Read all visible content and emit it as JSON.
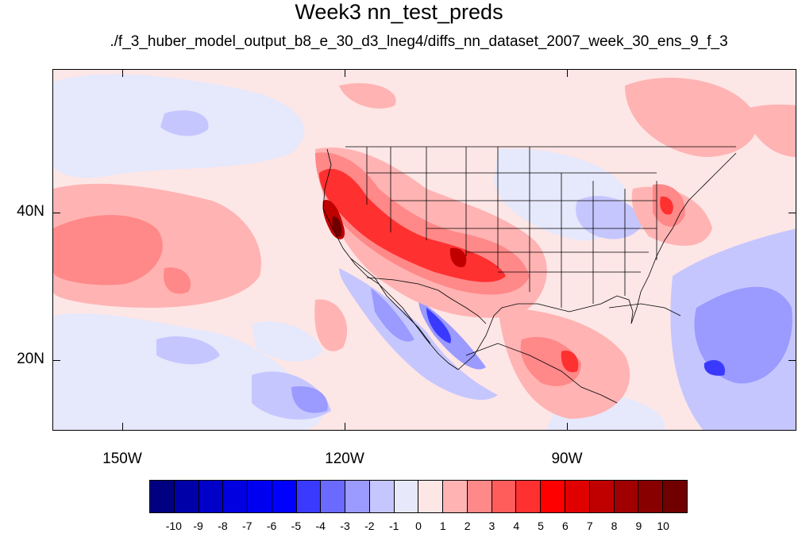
{
  "title": "Week3 nn_test_preds",
  "subtitle": "./f_3_huber_model_output_b8_e_30_d3_lneg4/diffs_nn_dataset_2007_week_30_ens_9_f_3",
  "axes": {
    "lon_labels": [
      "150W",
      "120W",
      "90W"
    ],
    "lat_labels": [
      "40N",
      "20N"
    ]
  },
  "colorbar": {
    "labels": [
      "-10",
      "-9",
      "-8",
      "-7",
      "-6",
      "-5",
      "-4",
      "-3",
      "-2",
      "-1",
      "0",
      "1",
      "2",
      "3",
      "4",
      "5",
      "6",
      "7",
      "8",
      "9",
      "10"
    ],
    "colors": [
      "#000080",
      "#0000a8",
      "#0000c8",
      "#0000e0",
      "#0000f0",
      "#0000ff",
      "#3a3aff",
      "#6a6aff",
      "#9a9aff",
      "#c6c6ff",
      "#e8e8fb",
      "#fde6e6",
      "#ffb3b3",
      "#ff8888",
      "#ff5c5c",
      "#ff3030",
      "#ff0000",
      "#e00000",
      "#c00000",
      "#a00000",
      "#880000",
      "#700000"
    ]
  },
  "palette": {
    "ocean_base": "#fde6e6",
    "light_blue": "#e6e8fb",
    "blue_1": "#c6c6ff",
    "blue_2": "#9a9aff",
    "blue_3": "#6a6aff",
    "blue_4": "#3a3aff",
    "red_1": "#ffb3b3",
    "red_2": "#ff8888",
    "red_3": "#ff5c5c",
    "red_4": "#ff3030",
    "red_5": "#e00000",
    "red_6": "#a00000"
  }
}
